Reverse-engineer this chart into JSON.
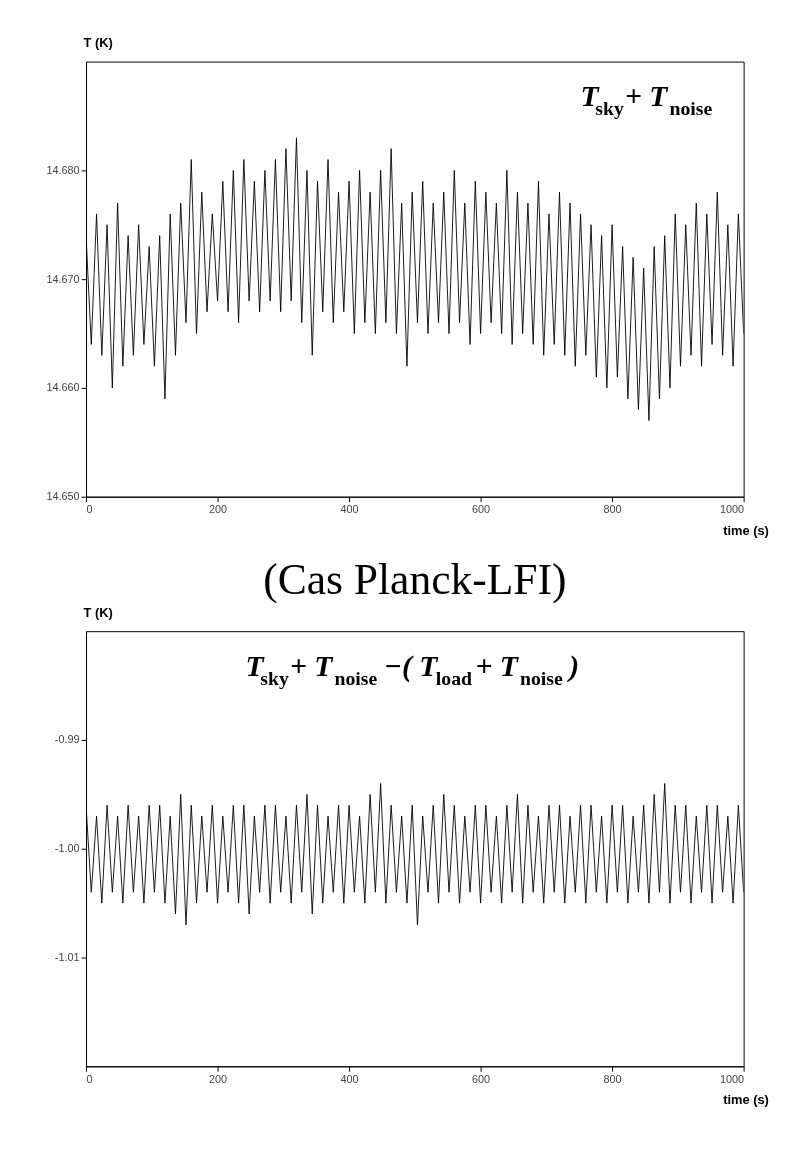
{
  "chart_data": [
    {
      "type": "line",
      "ylabel": "T (K)",
      "xlabel": "time (s)",
      "annotations": [
        "T$_{sky}$+  T$_{noise}$"
      ],
      "x": [
        0,
        8,
        16,
        24,
        32,
        40,
        48,
        56,
        64,
        72,
        80,
        88,
        96,
        104,
        112,
        120,
        128,
        136,
        144,
        152,
        160,
        168,
        176,
        184,
        192,
        200,
        208,
        216,
        224,
        232,
        240,
        248,
        256,
        264,
        272,
        280,
        288,
        296,
        304,
        312,
        320,
        328,
        336,
        344,
        352,
        360,
        368,
        376,
        384,
        392,
        400,
        408,
        416,
        424,
        432,
        440,
        448,
        456,
        464,
        472,
        480,
        488,
        496,
        504,
        512,
        520,
        528,
        536,
        544,
        552,
        560,
        568,
        576,
        584,
        592,
        600,
        608,
        616,
        624,
        632,
        640,
        648,
        656,
        664,
        672,
        680,
        688,
        696,
        704,
        712,
        720,
        728,
        736,
        744,
        752,
        760,
        768,
        776,
        784,
        792,
        800,
        808,
        816,
        824,
        832,
        840,
        848,
        856,
        864,
        872,
        880,
        888,
        896,
        904,
        912,
        920,
        928,
        936,
        944,
        952,
        960,
        968,
        976,
        984,
        992,
        1000
      ],
      "series": [
        {
          "color": "#000000",
          "values": [
            14.674,
            14.664,
            14.676,
            14.663,
            14.675,
            14.66,
            14.677,
            14.662,
            14.674,
            14.663,
            14.675,
            14.664,
            14.673,
            14.662,
            14.674,
            14.659,
            14.676,
            14.663,
            14.677,
            14.666,
            14.681,
            14.665,
            14.678,
            14.667,
            14.676,
            14.668,
            14.679,
            14.667,
            14.68,
            14.666,
            14.681,
            14.668,
            14.679,
            14.667,
            14.68,
            14.668,
            14.681,
            14.667,
            14.682,
            14.668,
            14.683,
            14.666,
            14.68,
            14.663,
            14.679,
            14.667,
            14.681,
            14.666,
            14.678,
            14.667,
            14.679,
            14.665,
            14.68,
            14.666,
            14.678,
            14.665,
            14.68,
            14.666,
            14.682,
            14.665,
            14.677,
            14.662,
            14.678,
            14.666,
            14.679,
            14.665,
            14.677,
            14.666,
            14.678,
            14.665,
            14.68,
            14.666,
            14.677,
            14.664,
            14.679,
            14.665,
            14.678,
            14.666,
            14.677,
            14.665,
            14.68,
            14.664,
            14.678,
            14.665,
            14.677,
            14.664,
            14.679,
            14.663,
            14.676,
            14.664,
            14.678,
            14.663,
            14.677,
            14.662,
            14.676,
            14.663,
            14.675,
            14.661,
            14.674,
            14.66,
            14.675,
            14.661,
            14.673,
            14.659,
            14.672,
            14.658,
            14.671,
            14.657,
            14.673,
            14.659,
            14.674,
            14.66,
            14.676,
            14.662,
            14.675,
            14.663,
            14.677,
            14.662,
            14.676,
            14.664,
            14.678,
            14.663,
            14.675,
            14.662,
            14.676,
            14.665
          ]
        }
      ],
      "xlim": [
        0,
        1000
      ],
      "xticks": [
        0,
        200,
        400,
        600,
        800,
        1000
      ],
      "ylim": [
        14.65,
        14.69
      ],
      "yticks": [
        {
          "value": 14.65,
          "label": "14.650"
        },
        {
          "value": 14.66,
          "label": "14.660"
        },
        {
          "value": 14.67,
          "label": "14.670"
        },
        {
          "value": 14.68,
          "label": "14.680"
        }
      ]
    },
    {
      "type": "line",
      "title": "(Cas Planck-LFI)",
      "ylabel": "T (K)",
      "xlabel": "time (s)",
      "annotations": [
        "T$_{sky}$+  T$_{noise}$−( T$_{load}$+  T$_{noise}$)"
      ],
      "x": [
        0,
        8,
        16,
        24,
        32,
        40,
        48,
        56,
        64,
        72,
        80,
        88,
        96,
        104,
        112,
        120,
        128,
        136,
        144,
        152,
        160,
        168,
        176,
        184,
        192,
        200,
        208,
        216,
        224,
        232,
        240,
        248,
        256,
        264,
        272,
        280,
        288,
        296,
        304,
        312,
        320,
        328,
        336,
        344,
        352,
        360,
        368,
        376,
        384,
        392,
        400,
        408,
        416,
        424,
        432,
        440,
        448,
        456,
        464,
        472,
        480,
        488,
        496,
        504,
        512,
        520,
        528,
        536,
        544,
        552,
        560,
        568,
        576,
        584,
        592,
        600,
        608,
        616,
        624,
        632,
        640,
        648,
        656,
        664,
        672,
        680,
        688,
        696,
        704,
        712,
        720,
        728,
        736,
        744,
        752,
        760,
        768,
        776,
        784,
        792,
        800,
        808,
        816,
        824,
        832,
        840,
        848,
        856,
        864,
        872,
        880,
        888,
        896,
        904,
        912,
        920,
        928,
        936,
        944,
        952,
        960,
        968,
        976,
        984,
        992,
        1000
      ],
      "series": [
        {
          "color": "#000000",
          "values": [
            -0.996,
            -1.004,
            -0.997,
            -1.005,
            -0.996,
            -1.004,
            -0.997,
            -1.005,
            -0.996,
            -1.004,
            -0.997,
            -1.005,
            -0.996,
            -1.004,
            -0.996,
            -1.005,
            -0.997,
            -1.006,
            -0.995,
            -1.007,
            -0.996,
            -1.005,
            -0.997,
            -1.004,
            -0.996,
            -1.005,
            -0.997,
            -1.004,
            -0.996,
            -1.005,
            -0.996,
            -1.006,
            -0.997,
            -1.004,
            -0.996,
            -1.005,
            -0.996,
            -1.004,
            -0.997,
            -1.005,
            -0.996,
            -1.004,
            -0.995,
            -1.006,
            -0.996,
            -1.005,
            -0.997,
            -1.004,
            -0.996,
            -1.005,
            -0.996,
            -1.004,
            -0.997,
            -1.005,
            -0.995,
            -1.004,
            -0.994,
            -1.005,
            -0.996,
            -1.004,
            -0.997,
            -1.005,
            -0.996,
            -1.007,
            -0.997,
            -1.004,
            -0.996,
            -1.005,
            -0.995,
            -1.004,
            -0.996,
            -1.005,
            -0.997,
            -1.004,
            -0.996,
            -1.005,
            -0.996,
            -1.004,
            -0.997,
            -1.005,
            -0.996,
            -1.004,
            -0.995,
            -1.005,
            -0.996,
            -1.004,
            -0.997,
            -1.005,
            -0.996,
            -1.004,
            -0.996,
            -1.005,
            -0.997,
            -1.004,
            -0.996,
            -1.005,
            -0.996,
            -1.004,
            -0.997,
            -1.005,
            -0.996,
            -1.004,
            -0.996,
            -1.005,
            -0.997,
            -1.004,
            -0.996,
            -1.005,
            -0.995,
            -1.004,
            -0.994,
            -1.005,
            -0.996,
            -1.004,
            -0.996,
            -1.005,
            -0.997,
            -1.004,
            -0.996,
            -1.005,
            -0.996,
            -1.004,
            -0.997,
            -1.005,
            -0.996,
            -1.004
          ]
        }
      ],
      "xlim": [
        0,
        1000
      ],
      "xticks": [
        0,
        200,
        400,
        600,
        800,
        1000
      ],
      "ylim": [
        -1.02,
        -0.98
      ],
      "yticks": [
        {
          "value": -1.01,
          "label": "-1.01"
        },
        {
          "value": -1.0,
          "label": "-1.00"
        },
        {
          "value": -0.99,
          "label": "-0.99"
        }
      ]
    }
  ]
}
